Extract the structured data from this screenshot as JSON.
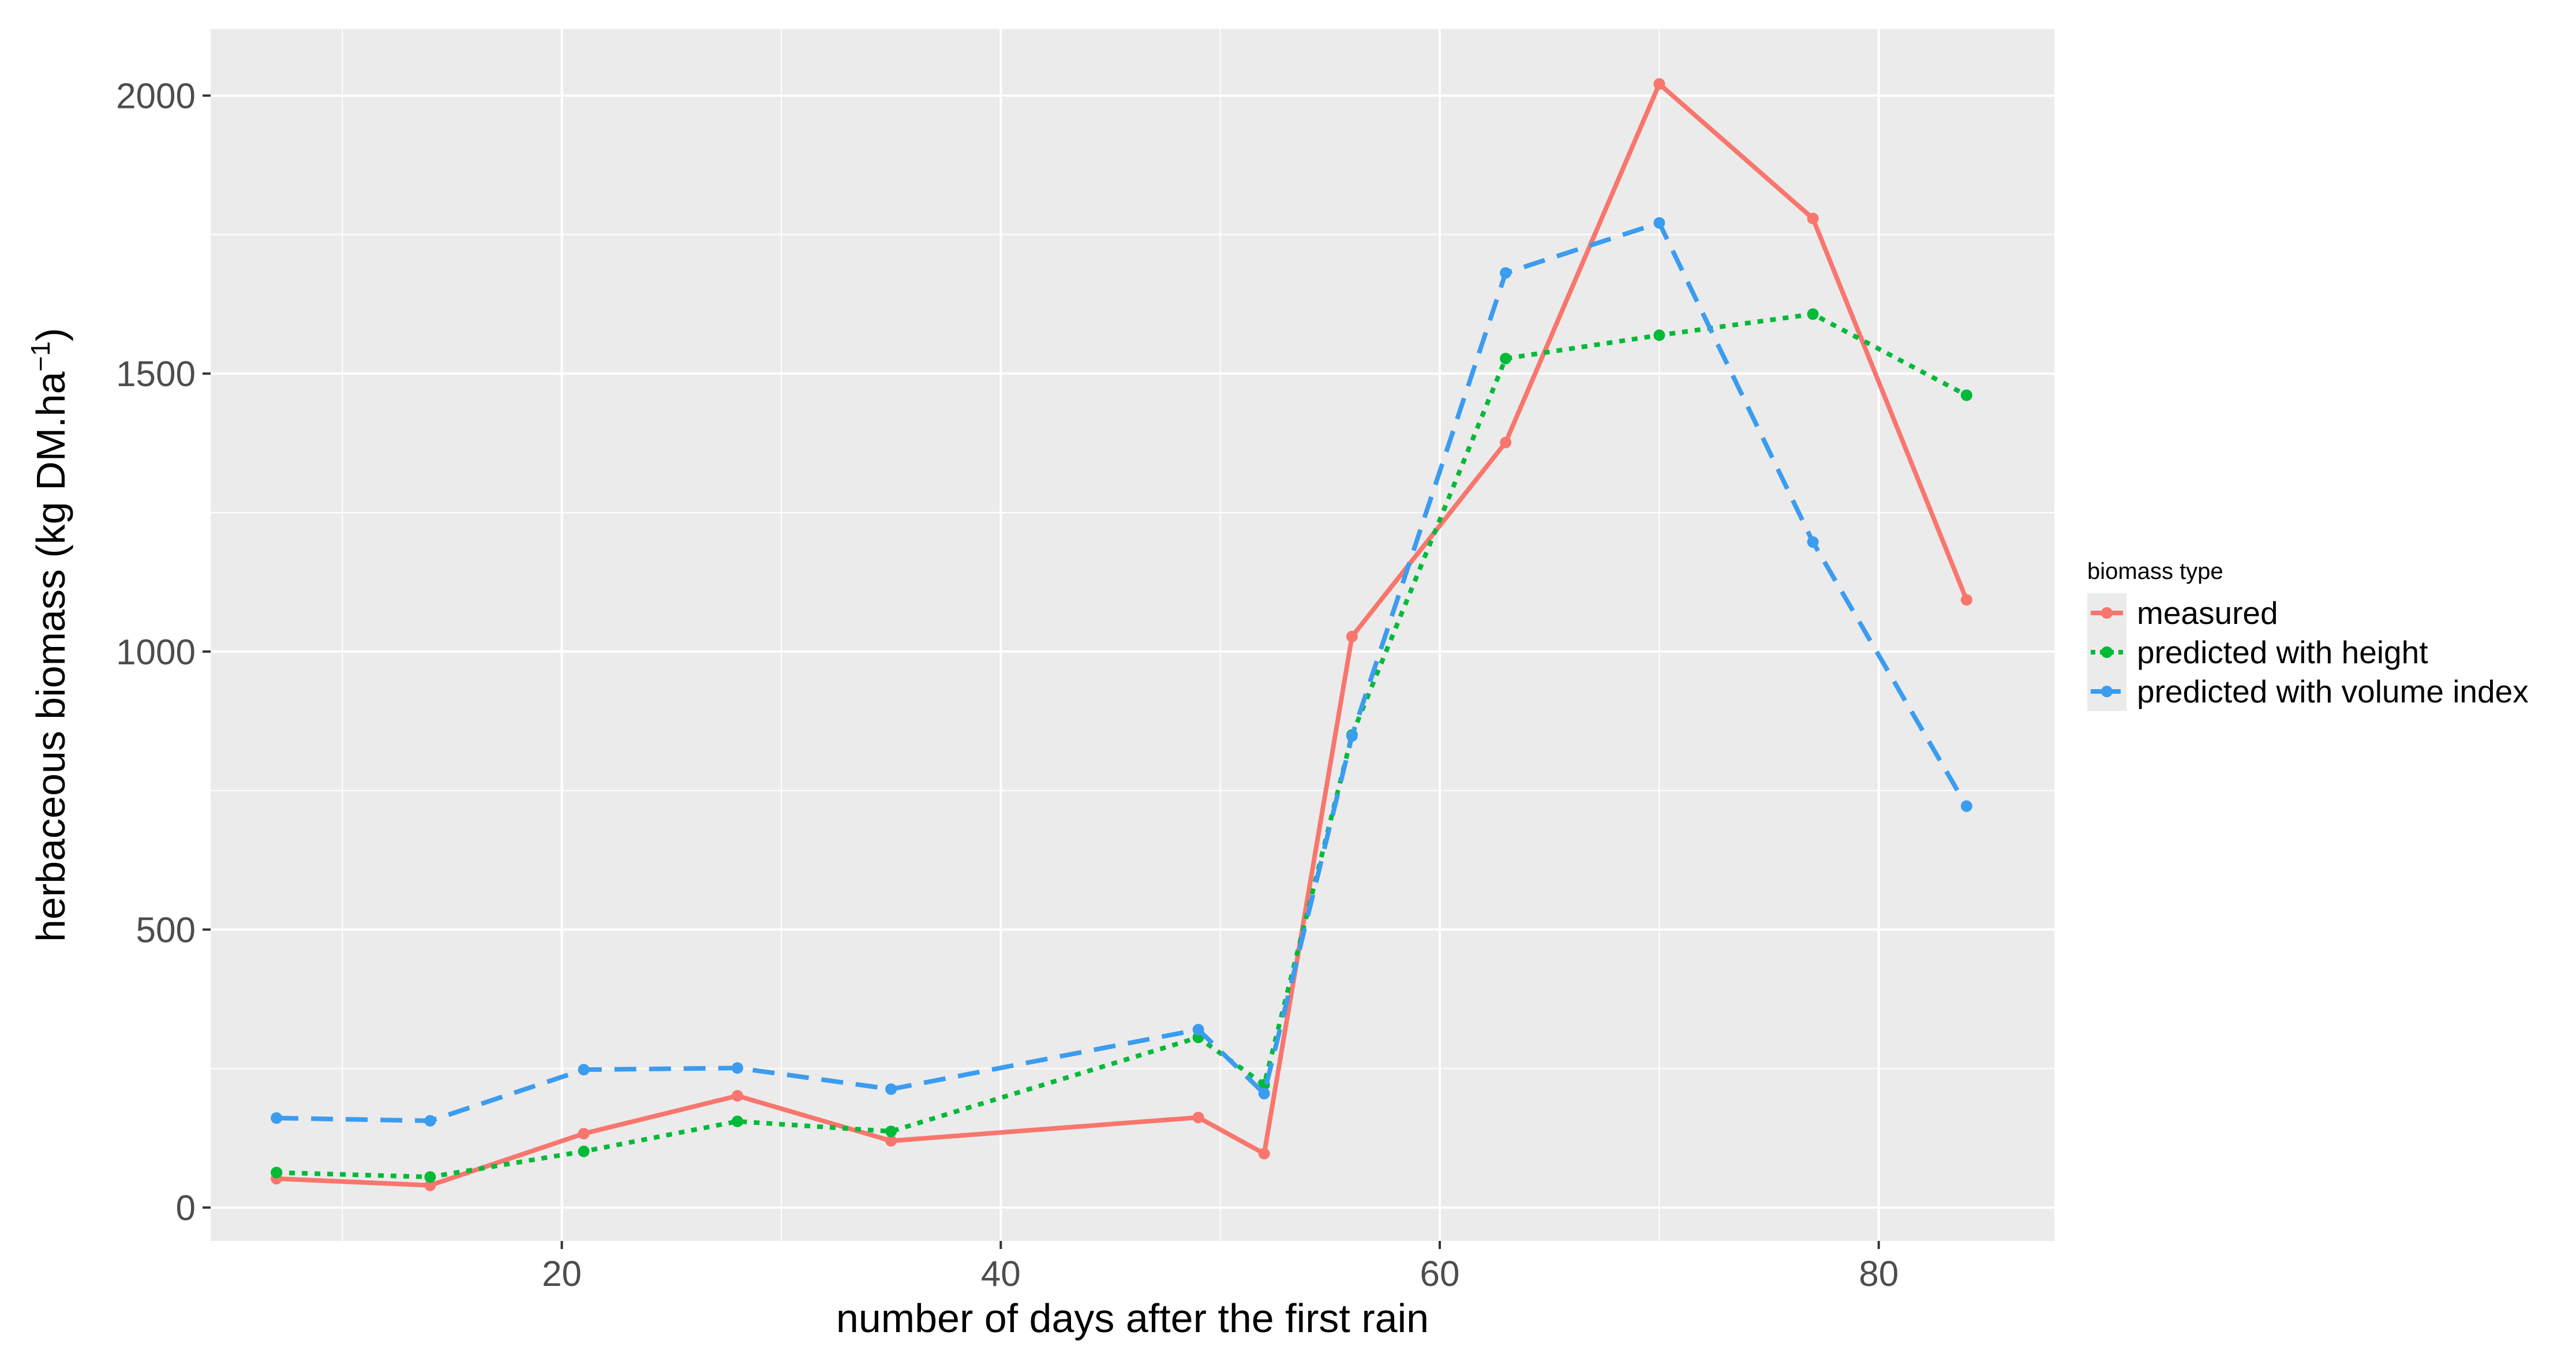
{
  "chart_data": {
    "type": "line",
    "xlabel": "number of days after the first rain",
    "ylabel": "herbaceous biomass (kg DM.ha",
    "ylabel_sup": "−1",
    "ylabel_close": ")",
    "xlim": [
      4,
      88
    ],
    "ylim": [
      -60,
      2120
    ],
    "x_ticks": [
      20,
      40,
      60,
      80
    ],
    "y_ticks": [
      0,
      500,
      1000,
      1500,
      2000
    ],
    "grid": true,
    "legend_title": "biomass type",
    "legend_position": "right",
    "x": [
      7,
      14,
      21,
      28,
      35,
      49,
      52,
      56,
      63,
      70,
      77,
      84
    ],
    "series": [
      {
        "name": "measured",
        "color": "#F8766D",
        "dash": "solid",
        "values": [
          52,
          40,
          133,
          201,
          120,
          162,
          97,
          1027,
          1376,
          2021,
          1779,
          1093
        ]
      },
      {
        "name": "predicted with height",
        "color": "#00BA38",
        "dash": "dotted",
        "values": [
          63,
          55,
          101,
          155,
          137,
          306,
          221,
          850,
          1527,
          1569,
          1607,
          1461
        ]
      },
      {
        "name": "predicted with volume index",
        "color": "#3B9CF0",
        "dash": "dashed",
        "values": [
          161,
          156,
          248,
          251,
          213,
          320,
          205,
          848,
          1681,
          1771,
          1197,
          722
        ]
      }
    ]
  }
}
